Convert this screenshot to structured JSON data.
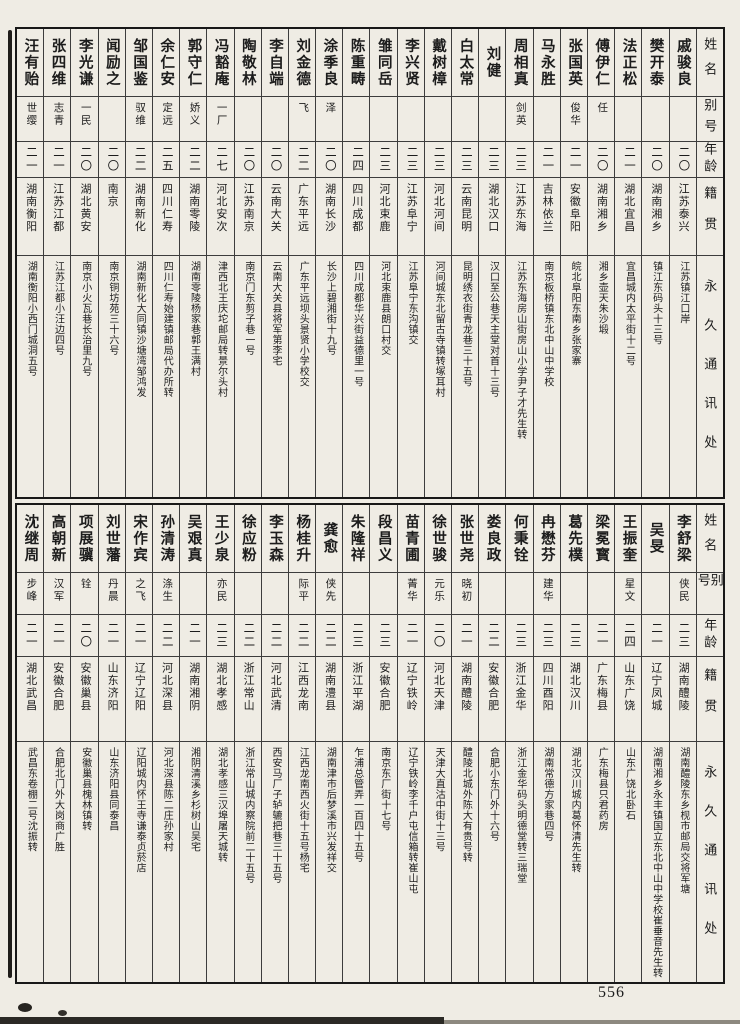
{
  "page_number": "556",
  "row_headers": {
    "name": "姓名",
    "alias": "别号",
    "age": "年龄",
    "native": "籍贯",
    "address": "永久通讯处"
  },
  "tables": [
    {
      "entries": [
        {
          "name": "汪有贻",
          "alias": "世缨",
          "age": "二一",
          "native": "湖南衡阳",
          "address": "湖南衡阳小西门城洞五号"
        },
        {
          "name": "张四维",
          "alias": "志青",
          "age": "二一",
          "native": "江苏江都",
          "address": "江苏江都小汪边四号"
        },
        {
          "name": "李光谦",
          "alias": "一民",
          "age": "二〇",
          "native": "湖北黄安",
          "address": "南京小火瓦巷长治里九号"
        },
        {
          "name": "闻励之",
          "alias": "",
          "age": "二〇",
          "native": "南京",
          "address": "南京铜坊苑三十六号"
        },
        {
          "name": "邹国鉴",
          "alias": "驭维",
          "age": "二二",
          "native": "湖南新化",
          "address": "湖南新化大同镇沙塘湾邹鸿发"
        },
        {
          "name": "余仁安",
          "alias": "定远",
          "age": "二五",
          "native": "四川仁寿",
          "address": "四川仁寿始建镇邮局代办所转"
        },
        {
          "name": "郭守仁",
          "alias": "娇义",
          "age": "二二",
          "native": "湖南零陵",
          "address": "湖南零陵杨家巷郭王满村"
        },
        {
          "name": "冯豁庵",
          "alias": "一厂",
          "age": "二七",
          "native": "河北安次",
          "address": "津西北王庆坨邮局转景尔头村"
        },
        {
          "name": "陶敬林",
          "alias": "",
          "age": "二〇",
          "native": "江苏南京",
          "address": "南京门东剪子巷一号"
        },
        {
          "name": "李自端",
          "alias": "",
          "age": "二〇",
          "native": "云南大关",
          "address": "云南大关县将军第李宅"
        },
        {
          "name": "刘金德",
          "alias": "飞",
          "age": "二二",
          "native": "广东平远",
          "address": "广东平远坝头景贤小学校交"
        },
        {
          "name": "涂季良",
          "alias": "泽",
          "age": "二〇",
          "native": "湖南长沙",
          "address": "长沙上碧湘街十九号"
        },
        {
          "name": "陈重畴",
          "alias": "",
          "age": "二四",
          "native": "四川成都",
          "address": "四川成都华兴街益德里一号"
        },
        {
          "name": "雏同岳",
          "alias": "",
          "age": "二三",
          "native": "河北束鹿",
          "address": "河北束鹿县朗口村交"
        },
        {
          "name": "李兴贤",
          "alias": "",
          "age": "二三",
          "native": "江苏阜宁",
          "address": "江苏阜宁东沟镇交"
        },
        {
          "name": "戴树樟",
          "alias": "",
          "age": "二三",
          "native": "河北河间",
          "address": "河间城东北留古寺镇转塚耳村"
        },
        {
          "name": "白太常",
          "alias": "",
          "age": "二三",
          "native": "云南昆明",
          "address": "昆明绣衣街青龙巷三十五号"
        },
        {
          "name": "刘健",
          "alias": "",
          "age": "二三",
          "native": "湖北汉口",
          "address": "汉口至公巷天主堂对首十三号"
        },
        {
          "name": "周相真",
          "alias": "剑英",
          "age": "二三",
          "native": "江苏东海",
          "address": "江苏东海房山街房山小学尹子才先生转"
        },
        {
          "name": "马永胜",
          "alias": "",
          "age": "二一",
          "native": "吉林依兰",
          "address": "南京板桥镇东北中山中学校"
        },
        {
          "name": "张国英",
          "alias": "俊华",
          "age": "二一",
          "native": "安徽阜阳",
          "address": "皖北阜阳东南乡张家寨"
        },
        {
          "name": "傅伊仁",
          "alias": "任",
          "age": "二〇",
          "native": "湖南湘乡",
          "address": "湘乡壶天朱沙塅"
        },
        {
          "name": "法正松",
          "alias": "",
          "age": "二一",
          "native": "湖北宜昌",
          "address": "宜昌城内太平街十二号"
        },
        {
          "name": "樊开泰",
          "alias": "",
          "age": "二〇",
          "native": "湖南湘乡",
          "address": "镇江东码头十三号"
        },
        {
          "name": "戚骏良",
          "alias": "",
          "age": "二〇",
          "native": "江苏泰兴",
          "address": "江苏镇江口岸"
        }
      ]
    },
    {
      "entries": [
        {
          "name": "沈继周",
          "alias": "步峰",
          "age": "二一",
          "native": "湖北武昌",
          "address": "武昌东卷棚二号沈振转"
        },
        {
          "name": "高朝新",
          "alias": "汉军",
          "age": "二一",
          "native": "安徽合肥",
          "address": "合肥北门外大岗商广胜"
        },
        {
          "name": "项展骥",
          "alias": "铨",
          "age": "二〇",
          "native": "安徽巢县",
          "address": "安徽巢县槐林镇转"
        },
        {
          "name": "刘世藩",
          "alias": "丹晨",
          "age": "二一",
          "native": "山东济阳",
          "address": "山东济阳县同泰昌"
        },
        {
          "name": "宋作宾",
          "alias": "之飞",
          "age": "二一",
          "native": "辽宁辽阳",
          "address": "辽阳城内怀王寺谦泰贞菸店"
        },
        {
          "name": "孙清涛",
          "alias": "涤生",
          "age": "二二",
          "native": "河北深县",
          "address": "河北深县陈二庄孙家村"
        },
        {
          "name": "吴艰真",
          "alias": "",
          "age": "二一",
          "native": "湖南湘阴",
          "address": "湘阴清溪乡杉树山吴宅"
        },
        {
          "name": "王少泉",
          "alias": "亦民",
          "age": "二三",
          "native": "湖北孝感",
          "address": "湖北孝感三汉埠屠天城转"
        },
        {
          "name": "徐应粉",
          "alias": "",
          "age": "二二",
          "native": "浙江常山",
          "address": "浙江常山城内察院前二十五号"
        },
        {
          "name": "李玉森",
          "alias": "",
          "age": "二二",
          "native": "河北武清",
          "address": "西安马厂子轳辘把巷三十五号"
        },
        {
          "name": "杨桂升",
          "alias": "际平",
          "age": "二二",
          "native": "江西龙南",
          "address": "江西龙南西火街十五号杨宅"
        },
        {
          "name": "龚愈",
          "alias": "侠先",
          "age": "二二",
          "native": "湖南澧县",
          "address": "湖南津市后梦溪市兴发祥交"
        },
        {
          "name": "朱隆祥",
          "alias": "",
          "age": "二三",
          "native": "浙江平湖",
          "address": "乍浦总管弄一百四十五号"
        },
        {
          "name": "段昌义",
          "alias": "",
          "age": "二三",
          "native": "安徽合肥",
          "address": "南京东厂街十七号"
        },
        {
          "name": "苗青圃",
          "alias": "菁华",
          "age": "二一",
          "native": "辽宁铁岭",
          "address": "辽宁铁岭李千户屯信箱转崔山屯"
        },
        {
          "name": "徐世骏",
          "alias": "元乐",
          "age": "二〇",
          "native": "河北天津",
          "address": "天津大直沽中街十三号"
        },
        {
          "name": "张世尧",
          "alias": "晓初",
          "age": "二一",
          "native": "湖南醴陵",
          "address": "醴陵北城外陈大有贵号转"
        },
        {
          "name": "娄良政",
          "alias": "",
          "age": "二二",
          "native": "安徽合肥",
          "address": "合肥小东门外十六号"
        },
        {
          "name": "何秉铨",
          "alias": "",
          "age": "二三",
          "native": "浙江金华",
          "address": "浙江金华码头明德堂转三瑞堂"
        },
        {
          "name": "冉懋芬",
          "alias": "建华",
          "age": "二三",
          "native": "四川酉阳",
          "address": "湖南常德方家巷四号"
        },
        {
          "name": "葛先樸",
          "alias": "",
          "age": "二三",
          "native": "湖北汉川",
          "address": "湖北汉川城内葛怀清先生转"
        },
        {
          "name": "梁冕寳",
          "alias": "",
          "age": "二一",
          "native": "广东梅县",
          "address": "广东梅县只君药房"
        },
        {
          "name": "王振奎",
          "alias": "星文",
          "age": "二四",
          "native": "山东广饶",
          "address": "山东广饶北卧石"
        },
        {
          "name": "吴旻",
          "alias": "",
          "age": "二一",
          "native": "辽宁凤城",
          "address": "湖南湘乡永丰镇国立东北中山中学校崔垂音先生转"
        },
        {
          "name": "李舒梁",
          "alias": "侠民",
          "age": "二三",
          "native": "湖南醴陵",
          "address": "湖南醴陵东乡枧市邮局交将军塘"
        }
      ]
    }
  ]
}
